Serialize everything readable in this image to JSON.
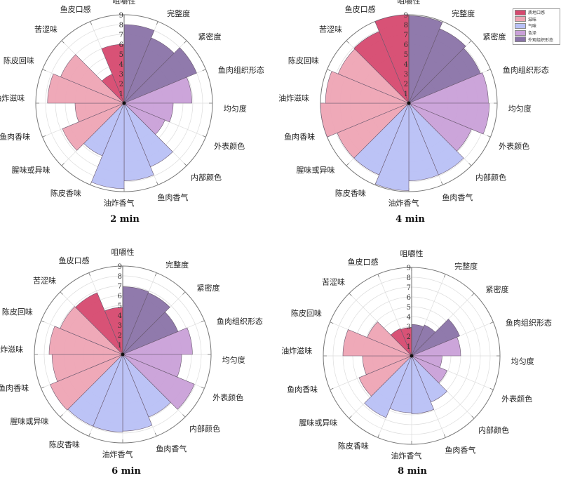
{
  "chart_data": [
    {
      "type": "polar-bar",
      "title": "2 min",
      "categories": [
        "咀嚼性",
        "完整度",
        "紧密度",
        "鱼肉组织形态",
        "均匀度",
        "外表颜色",
        "内部颜色",
        "鱼肉香气",
        "油炸香气",
        "陈皮香味",
        "腥味或异味",
        "鱼肉香味",
        "油炸滋味",
        "陈皮回味",
        "苦涩味",
        "鱼皮口感"
      ],
      "values": [
        6,
        8,
        7.2,
        8,
        6.9,
        5,
        4.5,
        7,
        7.9,
        8.7,
        5.8,
        6.8,
        5,
        7.8,
        7,
        3.2
      ],
      "rlim": [
        0,
        9
      ],
      "r_ticks": [
        "1",
        "2",
        "3",
        "4",
        "5",
        "6",
        "7",
        "8",
        "9"
      ]
    },
    {
      "type": "polar-bar",
      "title": "4 min",
      "categories": [
        "咀嚼性",
        "完整度",
        "紧密度",
        "鱼肉组织形态",
        "均匀度",
        "外表颜色",
        "内部颜色",
        "鱼肉香气",
        "油炸香气",
        "陈皮香味",
        "腥味或异味",
        "鱼肉香味",
        "油炸滋味",
        "陈皮回味",
        "苦涩味",
        "鱼皮口感"
      ],
      "values": [
        9,
        8.9,
        8.2,
        7.9,
        8.1,
        8.2,
        6.9,
        7.9,
        7.9,
        8.9,
        7.9,
        7.9,
        9,
        8.5,
        7.8,
        7.9
      ],
      "rlim": [
        0,
        9
      ],
      "r_ticks": [
        "1",
        "2",
        "3",
        "4",
        "5",
        "6",
        "7",
        "8",
        "9"
      ]
    },
    {
      "type": "polar-bar",
      "title": "6 min",
      "categories": [
        "咀嚼性",
        "完整度",
        "紧密度",
        "鱼肉组织形态",
        "均匀度",
        "外表颜色",
        "内部颜色",
        "鱼肉香气",
        "油炸香气",
        "陈皮香味",
        "腥味或异味",
        "鱼肉香味",
        "油炸滋味",
        "陈皮回味",
        "苦涩味",
        "鱼皮口感"
      ],
      "values": [
        4.8,
        6.9,
        6.8,
        6.1,
        7.1,
        6,
        7.9,
        6.9,
        7.8,
        7.9,
        7.9,
        8,
        7.2,
        7.5,
        6.9,
        6.8
      ],
      "rlim": [
        0,
        9
      ],
      "r_ticks": [
        "1",
        "2",
        "3",
        "4",
        "5",
        "6",
        "7",
        "8",
        "9"
      ]
    },
    {
      "type": "polar-bar",
      "title": "8 min",
      "categories": [
        "咀嚼性",
        "完整度",
        "紧密度",
        "鱼肉组织形态",
        "均匀度",
        "外表颜色",
        "内部颜色",
        "鱼肉香气",
        "油炸香气",
        "陈皮香味",
        "腥味或异味",
        "鱼肉香味",
        "油炸滋味",
        "陈皮回味",
        "苦涩味",
        "鱼皮口感"
      ],
      "values": [
        2.9,
        3.2,
        3.4,
        5.3,
        5,
        3.1,
        3.9,
        5.1,
        5.9,
        5.8,
        6.8,
        5.8,
        5,
        7,
        4.9,
        3
      ],
      "rlim": [
        0,
        9
      ],
      "r_ticks": [
        "1",
        "2",
        "3",
        "4",
        "5",
        "6",
        "7",
        "8",
        "9"
      ]
    }
  ],
  "legend": {
    "placement": "top-right",
    "items": [
      {
        "label": "质地口感",
        "color": "#d6496f"
      },
      {
        "label": "滋味",
        "color": "#eea4b4"
      },
      {
        "label": "气味",
        "color": "#b8c0f5"
      },
      {
        "label": "色泽",
        "color": "#c9a0d8"
      },
      {
        "label": "外观组织形态",
        "color": "#8a73a8"
      }
    ]
  },
  "category_groups": [
    0,
    4,
    4,
    4,
    3,
    3,
    3,
    2,
    2,
    2,
    2,
    1,
    1,
    1,
    1,
    0
  ]
}
